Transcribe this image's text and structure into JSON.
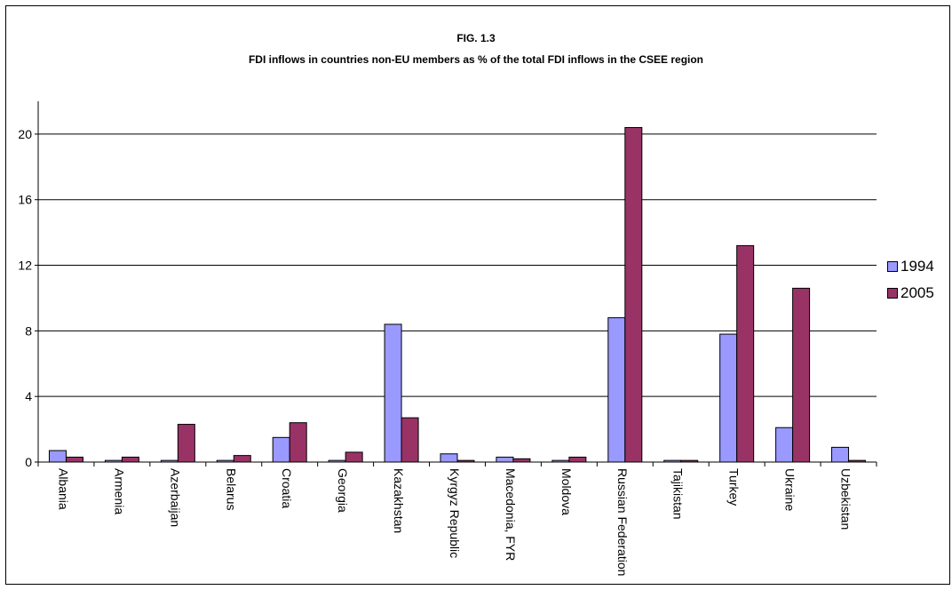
{
  "chart_data": {
    "type": "bar",
    "title": "FIG. 1.3",
    "subtitle": "FDI inflows in countries non-EU members as % of the total FDI inflows in the CSEE region",
    "xlabel": "",
    "ylabel": "",
    "categories": [
      "Albania",
      "Armenia",
      "Azerbaijan",
      "Belarus",
      "Croatia",
      "Georgia",
      "Kazakhstan",
      "Kyrgyz Republic",
      "Macedonia, FYR",
      "Moldova",
      "Russian Federation",
      "Tajikistan",
      "Turkey",
      "Ukraine",
      "Uzbekistan"
    ],
    "series": [
      {
        "name": "1994",
        "color": "#9999ff",
        "values": [
          0.7,
          0.1,
          0.1,
          0.1,
          1.5,
          0.1,
          8.4,
          0.5,
          0.3,
          0.1,
          8.8,
          0.1,
          7.8,
          2.1,
          0.9
        ]
      },
      {
        "name": "2005",
        "color": "#993366",
        "values": [
          0.3,
          0.3,
          2.3,
          0.4,
          2.4,
          0.6,
          2.7,
          0.1,
          0.2,
          0.3,
          20.4,
          0.1,
          13.2,
          10.6,
          0.1
        ]
      }
    ],
    "ylim": [
      0,
      22
    ],
    "yticks": [
      0,
      4,
      8,
      12,
      16,
      20
    ],
    "grid": true,
    "legend": "right"
  }
}
